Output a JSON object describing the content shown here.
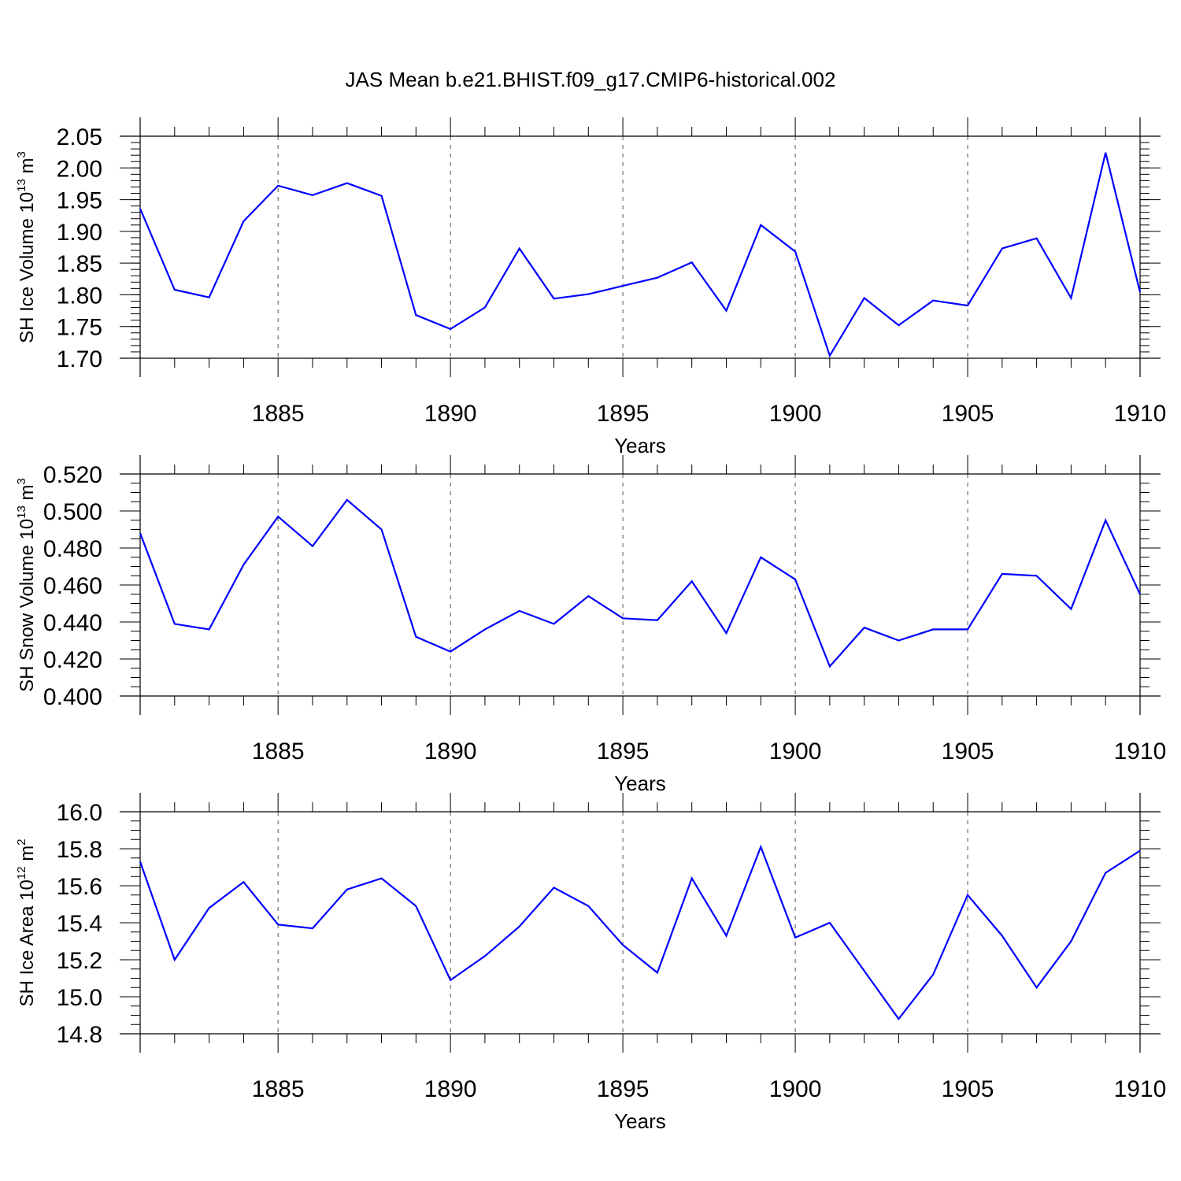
{
  "title": "JAS Mean b.e21.BHIST.f09_g17.CMIP6-historical.002",
  "colors": {
    "line": "#0000ff",
    "axis": "#000000",
    "grid": "#555555",
    "background": "#ffffff"
  },
  "chart_data": [
    {
      "type": "line",
      "title": "",
      "xlabel": "Years",
      "ylabel": {
        "text": "SH Ice Volume 10",
        "exponent": "13",
        "unit": " m",
        "unit_exponent": "3"
      },
      "xlim": [
        1881,
        1910
      ],
      "ylim": [
        1.7,
        2.05
      ],
      "grid": "vertical dashed at major x ticks",
      "x_major_ticks": [
        1885,
        1890,
        1895,
        1900,
        1905,
        1910
      ],
      "y_ticks": [
        1.7,
        1.75,
        1.8,
        1.85,
        1.9,
        1.95,
        2.0,
        2.05
      ],
      "y_tick_labels": [
        "1.70",
        "1.75",
        "1.80",
        "1.85",
        "1.90",
        "1.95",
        "2.00",
        "2.05"
      ],
      "y_minor_step": 0.01,
      "x": [
        1881,
        1882,
        1883,
        1884,
        1885,
        1886,
        1887,
        1888,
        1889,
        1890,
        1891,
        1892,
        1893,
        1894,
        1895,
        1896,
        1897,
        1898,
        1899,
        1900,
        1901,
        1902,
        1903,
        1904,
        1905,
        1906,
        1907,
        1908,
        1909,
        1910
      ],
      "series": [
        {
          "values": [
            1.936,
            1.808,
            1.796,
            1.916,
            1.972,
            1.957,
            1.976,
            1.956,
            1.768,
            1.746,
            1.78,
            1.873,
            1.794,
            1.801,
            1.814,
            1.827,
            1.851,
            1.775,
            1.91,
            1.868,
            1.704,
            1.795,
            1.752,
            1.791,
            1.783,
            1.873,
            1.889,
            1.795,
            2.024,
            1.804
          ]
        }
      ]
    },
    {
      "type": "line",
      "title": "",
      "xlabel": "Years",
      "ylabel": {
        "text": "SH Snow Volume 10",
        "exponent": "13",
        "unit": " m",
        "unit_exponent": "3"
      },
      "xlim": [
        1881,
        1910
      ],
      "ylim": [
        0.4,
        0.52
      ],
      "grid": "vertical dashed at major x ticks",
      "x_major_ticks": [
        1885,
        1890,
        1895,
        1900,
        1905,
        1910
      ],
      "y_ticks": [
        0.4,
        0.42,
        0.44,
        0.46,
        0.48,
        0.5,
        0.52
      ],
      "y_tick_labels": [
        "0.400",
        "0.420",
        "0.440",
        "0.460",
        "0.480",
        "0.500",
        "0.520"
      ],
      "y_minor_step": 0.005,
      "x": [
        1881,
        1882,
        1883,
        1884,
        1885,
        1886,
        1887,
        1888,
        1889,
        1890,
        1891,
        1892,
        1893,
        1894,
        1895,
        1896,
        1897,
        1898,
        1899,
        1900,
        1901,
        1902,
        1903,
        1904,
        1905,
        1906,
        1907,
        1908,
        1909,
        1910
      ],
      "series": [
        {
          "values": [
            0.488,
            0.439,
            0.436,
            0.471,
            0.497,
            0.481,
            0.506,
            0.49,
            0.432,
            0.424,
            0.436,
            0.446,
            0.439,
            0.454,
            0.442,
            0.441,
            0.462,
            0.434,
            0.475,
            0.463,
            0.416,
            0.437,
            0.43,
            0.436,
            0.436,
            0.466,
            0.465,
            0.447,
            0.495,
            0.455
          ]
        }
      ]
    },
    {
      "type": "line",
      "title": "",
      "xlabel": "Years",
      "ylabel": {
        "text": "SH Ice Area 10",
        "exponent": "12",
        "unit": " m",
        "unit_exponent": "2"
      },
      "xlim": [
        1881,
        1910
      ],
      "ylim": [
        14.8,
        16.0
      ],
      "grid": "vertical dashed at major x ticks",
      "x_major_ticks": [
        1885,
        1890,
        1895,
        1900,
        1905,
        1910
      ],
      "y_ticks": [
        14.8,
        15.0,
        15.2,
        15.4,
        15.6,
        15.8,
        16.0
      ],
      "y_tick_labels": [
        "14.8",
        "15.0",
        "15.2",
        "15.4",
        "15.6",
        "15.8",
        "16.0"
      ],
      "y_minor_step": 0.05,
      "x": [
        1881,
        1882,
        1883,
        1884,
        1885,
        1886,
        1887,
        1888,
        1889,
        1890,
        1891,
        1892,
        1893,
        1894,
        1895,
        1896,
        1897,
        1898,
        1899,
        1900,
        1901,
        1902,
        1903,
        1904,
        1905,
        1906,
        1907,
        1908,
        1909,
        1910
      ],
      "series": [
        {
          "values": [
            15.73,
            15.2,
            15.48,
            15.62,
            15.39,
            15.37,
            15.58,
            15.64,
            15.49,
            15.09,
            15.22,
            15.38,
            15.59,
            15.49,
            15.28,
            15.13,
            15.64,
            15.33,
            15.81,
            15.32,
            15.4,
            15.14,
            14.88,
            15.12,
            15.55,
            15.33,
            15.05,
            15.3,
            15.67,
            15.79
          ]
        }
      ]
    }
  ]
}
